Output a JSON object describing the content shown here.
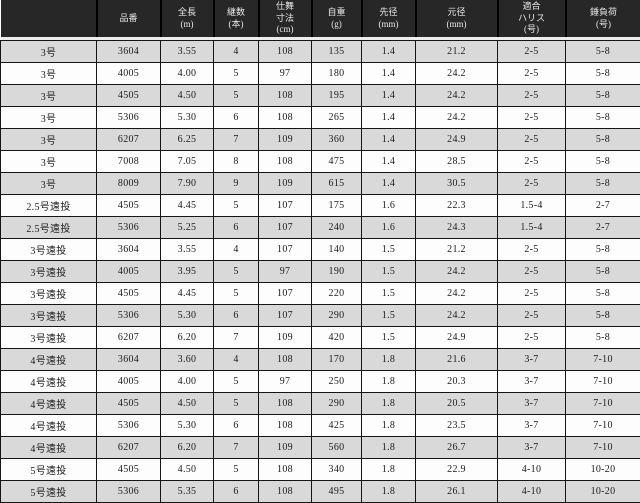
{
  "title": "ロッド仕様表",
  "colors": {
    "header_bg": "#272727",
    "header_text": "#e9e9e9",
    "row_alt_gray": "#d9d9d9",
    "row_white": "#fdfdfd",
    "grid_line": "#151515",
    "header_separator": "#ededed",
    "body_text": "#1c1c1c"
  },
  "table": {
    "columns": [
      {
        "key": "model",
        "label": ""
      },
      {
        "key": "item-no",
        "label": "品番"
      },
      {
        "key": "full-length",
        "label": "全長\n(m)"
      },
      {
        "key": "sections",
        "label": "継数\n(本)"
      },
      {
        "key": "closed-length",
        "label": "仕舞\n寸法\n(cm)"
      },
      {
        "key": "weight",
        "label": "自重\n(g)"
      },
      {
        "key": "tip-diameter",
        "label": "先径\n(mm)"
      },
      {
        "key": "butt-diameter",
        "label": "元径\n(mm)"
      },
      {
        "key": "leader-range",
        "label": "適合\nハリス\n(号)"
      },
      {
        "key": "sinker-range",
        "label": "錘負荷\n(号)"
      }
    ],
    "rows": [
      [
        "3号",
        "3604",
        "3.55",
        "4",
        "108",
        "135",
        "1.4",
        "21.2",
        "2-5",
        "5-8"
      ],
      [
        "3号",
        "4005",
        "4.00",
        "5",
        "97",
        "180",
        "1.4",
        "24.2",
        "2-5",
        "5-8"
      ],
      [
        "3号",
        "4505",
        "4.50",
        "5",
        "108",
        "195",
        "1.4",
        "24.2",
        "2-5",
        "5-8"
      ],
      [
        "3号",
        "5306",
        "5.30",
        "6",
        "108",
        "265",
        "1.4",
        "24.2",
        "2-5",
        "5-8"
      ],
      [
        "3号",
        "6207",
        "6.25",
        "7",
        "109",
        "360",
        "1.4",
        "24.9",
        "2-5",
        "5-8"
      ],
      [
        "3号",
        "7008",
        "7.05",
        "8",
        "108",
        "475",
        "1.4",
        "28.5",
        "2-5",
        "5-8"
      ],
      [
        "3号",
        "8009",
        "7.90",
        "9",
        "109",
        "615",
        "1.4",
        "30.5",
        "2-5",
        "5-8"
      ],
      [
        "2.5号遠投",
        "4505",
        "4.45",
        "5",
        "107",
        "175",
        "1.6",
        "22.3",
        "1.5-4",
        "2-7"
      ],
      [
        "2.5号遠投",
        "5306",
        "5.25",
        "6",
        "107",
        "240",
        "1.6",
        "24.3",
        "1.5-4",
        "2-7"
      ],
      [
        "3号遠投",
        "3604",
        "3.55",
        "4",
        "107",
        "140",
        "1.5",
        "21.2",
        "2-5",
        "5-8"
      ],
      [
        "3号遠投",
        "4005",
        "3.95",
        "5",
        "97",
        "190",
        "1.5",
        "24.2",
        "2-5",
        "5-8"
      ],
      [
        "3号遠投",
        "4505",
        "4.45",
        "5",
        "107",
        "220",
        "1.5",
        "24.2",
        "2-5",
        "5-8"
      ],
      [
        "3号遠投",
        "5306",
        "5.30",
        "6",
        "107",
        "290",
        "1.5",
        "24.2",
        "2-5",
        "5-8"
      ],
      [
        "3号遠投",
        "6207",
        "6.20",
        "7",
        "109",
        "420",
        "1.5",
        "24.9",
        "2-5",
        "5-8"
      ],
      [
        "4号遠投",
        "3604",
        "3.60",
        "4",
        "108",
        "170",
        "1.8",
        "21.6",
        "3-7",
        "7-10"
      ],
      [
        "4号遠投",
        "4005",
        "4.00",
        "5",
        "97",
        "250",
        "1.8",
        "20.3",
        "3-7",
        "7-10"
      ],
      [
        "4号遠投",
        "4505",
        "4.50",
        "5",
        "108",
        "290",
        "1.8",
        "20.5",
        "3-7",
        "7-10"
      ],
      [
        "4号遠投",
        "5306",
        "5.30",
        "6",
        "108",
        "425",
        "1.8",
        "23.5",
        "3-7",
        "7-10"
      ],
      [
        "4号遠投",
        "6207",
        "6.20",
        "7",
        "109",
        "560",
        "1.8",
        "26.7",
        "3-7",
        "7-10"
      ],
      [
        "5号遠投",
        "4505",
        "4.50",
        "5",
        "108",
        "340",
        "1.8",
        "22.9",
        "4-10",
        "10-20"
      ],
      [
        "5号遠投",
        "5306",
        "5.35",
        "6",
        "108",
        "495",
        "1.8",
        "26.1",
        "4-10",
        "10-20"
      ]
    ]
  }
}
